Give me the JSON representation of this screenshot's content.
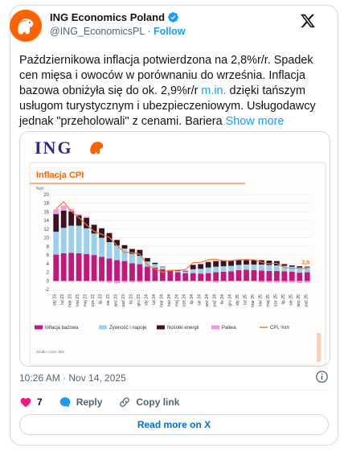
{
  "account": {
    "display_name": "ING Economics Poland",
    "handle": "@ING_EconomicsPL",
    "separator": "·",
    "follow_label": "Follow",
    "avatar_icon": "ing-lion-icon",
    "verified_icon": "verified-badge-icon"
  },
  "tweet": {
    "text_main": "Październikowa inflacja potwierdzona na 2,8%r/r. Spadek cen mięsa i owoców w porównaniu do września. Inflacja bazowa obniżyła się do ok. 2,9%r/r ",
    "text_link": "m.in.",
    "text_rest": " dzięki tańszym usługom turystycznym i ubezpieczeniowym. Usługodawcy jednak \"przeholowali\" z cenami. Bariera ",
    "show_more": "Show more"
  },
  "media": {
    "brand": "ING",
    "chart_title": "Inflacja CPI",
    "unit": "%r/r",
    "source": "Źródło: GUS, ING"
  },
  "chart_data": {
    "type": "bar",
    "stacked": true,
    "title": "Inflacja CPI",
    "ylabel": "%r/r",
    "ylim": [
      -2,
      20
    ],
    "yticks": [
      -2,
      0,
      2,
      4,
      6,
      8,
      10,
      12,
      14,
      16,
      18,
      20
    ],
    "xtick_labels": [
      "sty 23",
      "lut 23",
      "mar 23",
      "kwi 23",
      "maj 23",
      "cze 23",
      "lip 23",
      "sie 23",
      "wrz 23",
      "paź 23",
      "lis 23",
      "gru 23",
      "sty 24",
      "lut 24",
      "mar 24",
      "kwi 24",
      "maj 24",
      "cze 24",
      "lip 24",
      "sie 24",
      "wrz 24",
      "paź 24",
      "lis 24",
      "gru 24",
      "sty 25",
      "lut 25",
      "mar 25",
      "kwi 25",
      "maj 25",
      "cze 25",
      "lip 25",
      "sie 25",
      "wrz 25",
      "paź 25"
    ],
    "series": [
      {
        "name": "Inflacja bazowa",
        "color": "#c2187e",
        "values": [
          6.1,
          6.4,
          6.5,
          6.4,
          6.2,
          6.0,
          5.6,
          5.2,
          4.8,
          4.6,
          4.1,
          3.9,
          3.3,
          3.1,
          2.7,
          2.3,
          2.0,
          1.8,
          1.8,
          1.7,
          1.8,
          2.0,
          2.1,
          2.2,
          2.5,
          2.6,
          2.5,
          2.4,
          2.3,
          2.3,
          2.2,
          2.1,
          1.9,
          2.0
        ]
      },
      {
        "name": "Żywność i napoje",
        "color": "#9ad0ee",
        "values": [
          5.3,
          5.9,
          6.3,
          6.4,
          6.0,
          5.0,
          4.4,
          3.8,
          3.4,
          2.9,
          2.2,
          1.9,
          1.2,
          0.8,
          0.5,
          0.1,
          0.3,
          0.4,
          0.9,
          1.1,
          1.3,
          1.3,
          1.3,
          1.3,
          1.2,
          1.2,
          1.3,
          1.4,
          1.4,
          1.3,
          1.3,
          1.2,
          1.2,
          1.1
        ]
      },
      {
        "name": "Nośniki energii",
        "color": "#3a1220",
        "values": [
          4.1,
          4.0,
          3.3,
          2.4,
          2.4,
          2.0,
          2.2,
          2.1,
          1.3,
          0.8,
          1.1,
          1.4,
          0.8,
          0.3,
          0.1,
          0.1,
          0.1,
          0.1,
          1.0,
          1.1,
          1.3,
          1.3,
          1.3,
          1.3,
          1.1,
          1.0,
          1.1,
          1.0,
          1.0,
          1.0,
          0.4,
          0.3,
          0.3,
          0.2
        ]
      },
      {
        "name": "Paliwa",
        "color": "#f29ad8",
        "values": [
          1.1,
          1.2,
          0.6,
          0.3,
          0.3,
          0.1,
          -0.2,
          -0.4,
          -0.6,
          -0.3,
          -0.3,
          -0.3,
          -0.2,
          -0.1,
          0.0,
          0.1,
          0.1,
          0.2,
          0.1,
          -0.1,
          -0.2,
          -0.4,
          -0.2,
          0.0,
          0.2,
          0.3,
          0.0,
          -0.3,
          -0.4,
          -0.4,
          -0.4,
          -0.4,
          -0.5,
          -0.4
        ]
      },
      {
        "name": "CPI, %r/r",
        "color": "#f07a2a",
        "type": "line",
        "values": [
          16.6,
          18.4,
          16.1,
          14.7,
          13.0,
          11.5,
          10.8,
          10.1,
          8.2,
          6.6,
          6.6,
          6.2,
          3.7,
          2.8,
          2.0,
          2.4,
          2.5,
          2.6,
          4.2,
          4.3,
          4.9,
          5.0,
          4.7,
          4.7,
          4.9,
          4.9,
          4.9,
          4.3,
          4.0,
          4.1,
          3.1,
          2.9,
          2.9,
          2.8
        ]
      }
    ],
    "annotation": "2,8",
    "legend_position": "bottom"
  },
  "footer": {
    "timestamp": "10:26 AM · Nov 14, 2025",
    "likes": "7",
    "reply_label": "Reply",
    "copy_label": "Copy link",
    "read_more": "Read more on X"
  }
}
